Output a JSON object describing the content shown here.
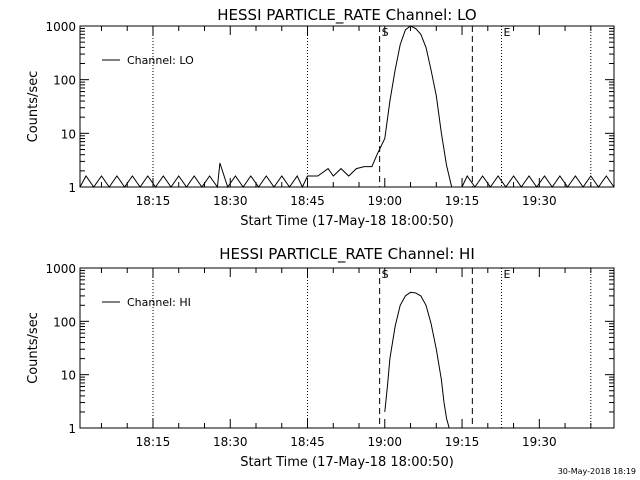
{
  "chart_data": [
    {
      "type": "line",
      "title": "HESSI PARTICLE_RATE Channel: LO",
      "xlabel": "Start Time (17-May-18 18:00:50)",
      "ylabel": "Counts/sec",
      "yscale": "log",
      "ylim": [
        1,
        1000
      ],
      "xlim": [
        "18:00:50",
        "19:44:30"
      ],
      "x_ticks": [
        "18:15",
        "18:30",
        "18:45",
        "19:00",
        "19:15",
        "19:30"
      ],
      "y_ticks": [
        "1",
        "10",
        "100",
        "1000"
      ],
      "legend": {
        "position": "top-left",
        "entries": [
          "Channel: LO"
        ]
      },
      "markers": {
        "S": "18:59:00",
        "E": "19:22:40"
      },
      "grid": false,
      "series": [
        {
          "name": "Channel: LO",
          "x": [
            "18:00:50",
            "18:02:00",
            "18:03:30",
            "18:05:00",
            "18:06:30",
            "18:08:00",
            "18:09:30",
            "18:11:00",
            "18:12:30",
            "18:14:00",
            "18:15:30",
            "18:17:00",
            "18:18:30",
            "18:20:00",
            "18:21:30",
            "18:23:00",
            "18:24:30",
            "18:26:00",
            "18:27:30",
            "18:28:00",
            "18:29:30",
            "18:31:00",
            "18:32:30",
            "18:34:00",
            "18:35:30",
            "18:37:00",
            "18:38:30",
            "18:40:00",
            "18:41:30",
            "18:43:00",
            "18:44:00",
            "18:45:00",
            "18:47:00",
            "18:49:00",
            "18:50:00",
            "18:51:30",
            "18:53:00",
            "18:54:30",
            "18:56:00",
            "18:57:30",
            "18:58:30",
            "19:00:00",
            "19:01:00",
            "19:02:00",
            "19:03:00",
            "19:04:00",
            "19:05:00",
            "19:06:00",
            "19:07:00",
            "19:08:00",
            "19:09:00",
            "19:10:00",
            "19:11:00",
            "19:12:00",
            "19:13:00",
            "19:14:00",
            "19:15:00",
            "19:16:00",
            "19:17:30",
            "19:19:00",
            "19:20:30",
            "19:22:00",
            "19:23:30",
            "19:25:00",
            "19:26:30",
            "19:28:00",
            "19:29:30",
            "19:31:00",
            "19:32:30",
            "19:34:00",
            "19:35:30",
            "19:37:00",
            "19:38:30",
            "19:40:00",
            "19:41:30",
            "19:43:00",
            "19:44:30"
          ],
          "y": [
            1,
            1.6,
            1,
            1.6,
            1,
            1.6,
            1,
            1.6,
            1,
            1.6,
            1,
            1.6,
            1,
            1.6,
            1,
            1.6,
            1,
            1.6,
            1,
            2.8,
            1,
            1.6,
            1,
            1.6,
            1,
            1.6,
            1,
            1.6,
            1,
            1.6,
            1,
            1.6,
            1.6,
            2.2,
            1.6,
            2.2,
            1.6,
            2.2,
            2.4,
            2.4,
            4,
            8,
            40,
            150,
            450,
            850,
            1000,
            900,
            700,
            400,
            150,
            50,
            10,
            2.5,
            1,
            1,
            1,
            1.6,
            1,
            1.6,
            1,
            1.6,
            1,
            1.6,
            1,
            1.6,
            1,
            1.6,
            1,
            1.6,
            1,
            1.6,
            1,
            1.6,
            1,
            1.6,
            1
          ]
        }
      ]
    },
    {
      "type": "line",
      "title": "HESSI PARTICLE_RATE Channel: HI",
      "xlabel": "Start Time (17-May-18 18:00:50)",
      "ylabel": "Counts/sec",
      "yscale": "log",
      "ylim": [
        1,
        1000
      ],
      "xlim": [
        "18:00:50",
        "19:44:30"
      ],
      "x_ticks": [
        "18:15",
        "18:30",
        "18:45",
        "19:00",
        "19:15",
        "19:30"
      ],
      "y_ticks": [
        "1",
        "10",
        "100",
        "1000"
      ],
      "legend": {
        "position": "top-left",
        "entries": [
          "Channel: HI"
        ]
      },
      "markers": {
        "S": "18:59:00",
        "E": "19:22:40"
      },
      "grid": false,
      "series": [
        {
          "name": "Channel: HI",
          "x": [
            "19:00:00",
            "19:00:30",
            "19:01:00",
            "19:02:00",
            "19:03:00",
            "19:04:00",
            "19:05:00",
            "19:06:00",
            "19:07:00",
            "19:08:00",
            "19:09:00",
            "19:10:00",
            "19:11:00",
            "19:11:30",
            "19:12:00",
            "19:12:30"
          ],
          "y": [
            2,
            6,
            20,
            80,
            200,
            300,
            350,
            340,
            300,
            200,
            90,
            30,
            8,
            3,
            1.5,
            1
          ]
        }
      ]
    }
  ],
  "footer": {
    "timestamp": "30-May-2018 18:19"
  }
}
